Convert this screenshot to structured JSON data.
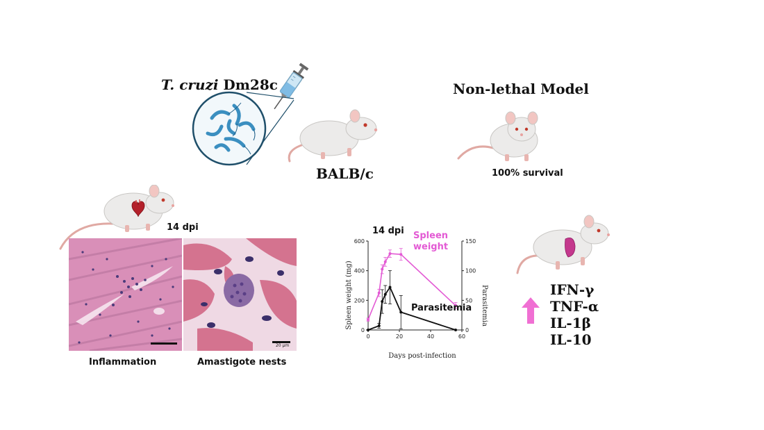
{
  "labels": {
    "title_species": "T. cruzi",
    "title_strain": "Dm28c",
    "non_lethal": "Non-lethal Model",
    "mouse_strain": "BALB/c",
    "survival": "100% survival",
    "dpi_histology": "14 dpi",
    "dpi_chart": "14 dpi",
    "histology_left": "Inflammation",
    "histology_right": "Amastigote nests",
    "scale_bar_right": "20 µm"
  },
  "cytokines": [
    "IFN-γ",
    "TNF-α",
    "IL-1β",
    "IL-10"
  ],
  "colors": {
    "spleen": "#e35ad4",
    "parasitemia": "#111111",
    "arrow": "#f06fd3",
    "mouse_body": "#ecebea",
    "vessel": "#4a8cb0",
    "parasite": "#3b8fc0",
    "heart": "#b3202a",
    "spleen_organ": "#c4388d",
    "tissue_pink": "#e8a6c5",
    "nuclei": "#4a3a7a"
  },
  "icons": [
    "syringe-icon",
    "parasite-magnifier-icon",
    "mouse-icon",
    "heart-icon",
    "spleen-icon",
    "up-arrow-icon"
  ],
  "chart_data": {
    "type": "line",
    "xlabel": "Days post-infection",
    "ylabel": "Spleen weight (mg)",
    "y2label": "Parasitemia",
    "xlim": [
      0,
      60
    ],
    "ylim": [
      0,
      600
    ],
    "y2lim": [
      0,
      150
    ],
    "xticks": [
      0,
      20,
      40,
      60
    ],
    "yticks": [
      0,
      200,
      400,
      600
    ],
    "y2ticks": [
      0,
      50,
      100,
      150
    ],
    "series": [
      {
        "name": "Spleen weight",
        "label_lines": [
          "Spleen",
          "weight"
        ],
        "axis": "left",
        "color": "#e35ad4",
        "x": [
          0,
          7,
          9,
          11,
          14,
          21,
          56
        ],
        "y": [
          70,
          250,
          410,
          460,
          515,
          510,
          165
        ],
        "err": [
          10,
          25,
          30,
          30,
          25,
          40,
          20
        ]
      },
      {
        "name": "Parasitemia",
        "axis": "right",
        "color": "#111111",
        "x": [
          0,
          7,
          9,
          11,
          14,
          21,
          56
        ],
        "y": [
          0,
          7,
          48,
          60,
          72,
          30,
          0
        ],
        "err": [
          0,
          4,
          20,
          15,
          28,
          28,
          0
        ]
      }
    ]
  }
}
